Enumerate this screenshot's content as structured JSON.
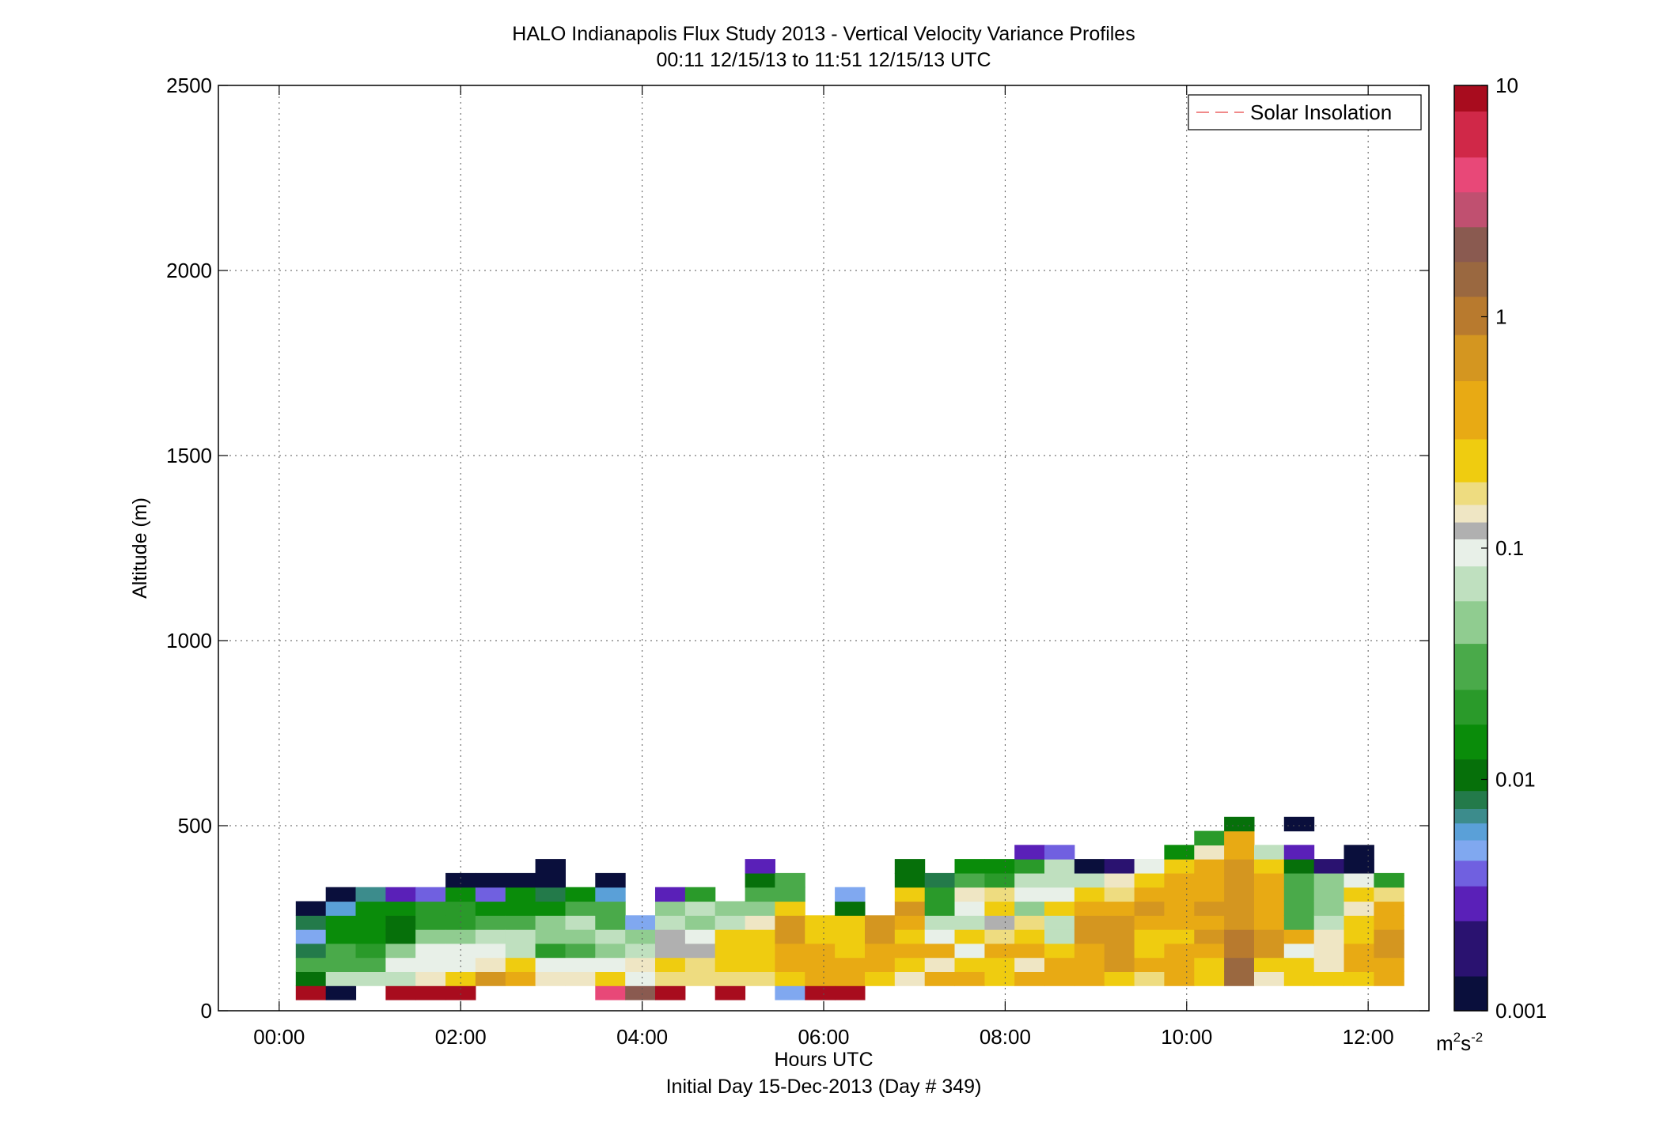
{
  "title": {
    "line1": "HALO Indianapolis Flux Study 2013 - Vertical Velocity Variance Profiles",
    "line2": "00:11 12/15/13 to 11:51 12/15/13  UTC"
  },
  "colorbar": {
    "tick_labels": [
      "10",
      "1",
      "0.1",
      "0.01",
      "0.001"
    ],
    "unit": "m2s-2",
    "unit_base": "m",
    "unit_exp1": "2",
    "unit_mid": "s",
    "unit_exp2": "-2",
    "colors": {
      "v0.001": "#0a0f3c",
      "v0.002": "#2a1270",
      "v0.003": "#5a20b8",
      "v0.004": "#7060e0",
      "v0.005": "#80a8f0",
      "v0.006": "#5aa0d8",
      "v0.007": "#3c8c8c",
      "v0.008": "#237a4a",
      "v0.01": "#06700a",
      "v0.015": "#0a8c0a",
      "v0.02": "#2a9a2a",
      "v0.03": "#4aaa4a",
      "v0.05": "#90cc90",
      "v0.07": "#bfe0bf",
      "v0.1": "#e8f0e8",
      "v0.12": "#b0b0b0",
      "v0.14": "#efe6c4",
      "v0.17": "#eedc80",
      "v0.22": "#efcc10",
      "v0.4": "#e8aa14",
      "v0.7": "#d49620",
      "v1": "#b87a2e",
      "v1.5": "#9a6840",
      "v2": "#8a5a50",
      "v3": "#c05070",
      "v4": "#e84878",
      "v6": "#d02848",
      "v10": "#a80c1e"
    }
  },
  "chart_data": {
    "type": "heatmap",
    "title": "HALO Indianapolis Flux Study 2013 - Vertical Velocity Variance Profiles",
    "subtitle": "00:11 12/15/13 to 11:51 12/15/13  UTC",
    "xlabel": "Hours UTC",
    "xlabel2": "Initial Day 15-Dec-2013 (Day # 349)",
    "ylabel": "Altitude (m)",
    "x_tick_labels": [
      "00:00",
      "02:00",
      "04:00",
      "06:00",
      "08:00",
      "10:00",
      "12:00"
    ],
    "y_tick_labels": [
      "0",
      "500",
      "1000",
      "1500",
      "2000",
      "2500"
    ],
    "xlim_hours": [
      -0.67,
      12.67
    ],
    "ylim": [
      0,
      2500
    ],
    "grid": true,
    "legend": {
      "entries": [
        "Solar Insolation"
      ],
      "placement": "top-right"
    },
    "colorbar_range": [
      0.001,
      10
    ],
    "colorbar_scale": "log",
    "x_bin_hours": 0.33,
    "x_start_hours": 0.183,
    "alt_bin_m": 38,
    "alt_start_m": 30,
    "columns": [
      [
        10,
        0.01,
        0.03,
        0.008,
        0.005,
        0.008,
        0.001
      ],
      [
        0.001,
        0.07,
        0.03,
        0.03,
        0.015,
        0.015,
        0.006,
        0.001
      ],
      [
        null,
        0.07,
        0.03,
        0.02,
        0.015,
        0.015,
        0.015,
        0.007
      ],
      [
        10,
        0.07,
        0.1,
        0.05,
        0.01,
        0.01,
        0.015,
        0.003
      ],
      [
        10,
        0.14,
        0.1,
        0.1,
        0.05,
        0.02,
        0.02,
        0.004
      ],
      [
        10,
        0.22,
        0.1,
        0.1,
        0.05,
        0.02,
        0.02,
        0.015,
        0.001
      ],
      [
        null,
        0.7,
        0.14,
        0.1,
        0.07,
        0.03,
        0.015,
        0.004,
        0.001
      ],
      [
        null,
        0.4,
        0.22,
        0.07,
        0.07,
        0.03,
        0.015,
        0.015,
        0.001
      ],
      [
        null,
        0.14,
        0.1,
        0.02,
        0.05,
        0.05,
        0.015,
        0.008,
        0.001,
        0.001
      ],
      [
        null,
        0.14,
        0.1,
        0.03,
        0.05,
        0.07,
        0.03,
        0.015
      ],
      [
        4,
        0.22,
        0.1,
        0.05,
        0.07,
        0.03,
        0.03,
        0.006,
        0.001
      ],
      [
        2,
        0.1,
        0.14,
        0.07,
        0.05,
        0.005
      ],
      [
        10,
        0.17,
        0.22,
        0.12,
        0.12,
        0.07,
        0.05,
        0.003
      ],
      [
        null,
        0.17,
        0.17,
        0.12,
        0.1,
        0.05,
        0.07,
        0.02
      ],
      [
        10,
        0.17,
        0.22,
        0.22,
        0.22,
        0.07,
        0.05
      ],
      [
        null,
        0.17,
        0.22,
        0.22,
        0.22,
        0.14,
        0.05,
        0.03,
        0.01,
        0.003
      ],
      [
        0.005,
        0.22,
        0.4,
        0.4,
        0.7,
        0.7,
        0.22,
        0.03,
        0.03
      ],
      [
        10,
        0.4,
        0.4,
        0.4,
        0.22,
        0.22
      ],
      [
        10,
        0.4,
        0.4,
        0.22,
        0.22,
        0.22,
        0.01,
        0.005
      ],
      [
        null,
        0.22,
        0.4,
        0.4,
        0.7,
        0.7
      ],
      [
        null,
        0.14,
        0.22,
        0.4,
        0.22,
        0.4,
        0.7,
        0.22,
        0.01,
        0.01
      ],
      [
        null,
        0.4,
        0.14,
        0.4,
        0.1,
        0.07,
        0.02,
        0.02,
        0.008
      ],
      [
        null,
        0.4,
        0.22,
        0.1,
        0.22,
        0.07,
        0.1,
        0.14,
        0.03,
        0.015
      ],
      [
        null,
        0.22,
        0.22,
        0.4,
        0.17,
        0.12,
        0.22,
        0.17,
        0.02,
        0.015
      ],
      [
        null,
        0.4,
        0.14,
        0.4,
        0.22,
        0.17,
        0.05,
        0.1,
        0.07,
        0.02,
        0.003
      ],
      [
        null,
        0.4,
        0.4,
        0.22,
        0.07,
        0.07,
        0.22,
        0.1,
        0.07,
        0.07,
        0.004
      ],
      [
        null,
        0.4,
        0.4,
        0.4,
        0.7,
        0.7,
        0.4,
        0.22,
        0.07,
        0.001
      ],
      [
        null,
        0.22,
        0.7,
        0.7,
        0.7,
        0.7,
        0.4,
        0.17,
        0.14,
        0.002
      ],
      [
        null,
        0.17,
        0.4,
        0.22,
        0.22,
        0.4,
        0.7,
        0.4,
        0.22,
        0.1
      ],
      [
        null,
        0.4,
        0.4,
        0.4,
        0.22,
        0.4,
        0.4,
        0.4,
        0.4,
        0.22,
        0.015
      ],
      [
        null,
        0.22,
        0.22,
        0.4,
        0.7,
        0.4,
        0.7,
        0.4,
        0.4,
        0.4,
        0.14,
        0.02
      ],
      [
        null,
        1.5,
        1.5,
        1,
        1,
        0.7,
        0.7,
        0.7,
        0.7,
        0.7,
        0.4,
        0.4,
        0.01
      ],
      [
        null,
        0.14,
        0.22,
        0.7,
        0.7,
        0.4,
        0.4,
        0.4,
        0.4,
        0.22,
        0.07
      ],
      [
        null,
        0.22,
        0.22,
        0.1,
        0.4,
        0.03,
        0.03,
        0.03,
        0.03,
        0.01,
        0.003,
        null,
        0.001
      ],
      [
        null,
        0.22,
        0.14,
        0.14,
        0.14,
        0.07,
        0.05,
        0.05,
        0.05,
        0.002
      ],
      [
        null,
        0.22,
        0.4,
        0.4,
        0.22,
        0.22,
        0.14,
        0.22,
        0.1,
        0.001,
        0.001
      ],
      [
        null,
        0.4,
        0.4,
        0.7,
        0.7,
        0.4,
        0.4,
        0.17,
        0.02
      ]
    ]
  }
}
